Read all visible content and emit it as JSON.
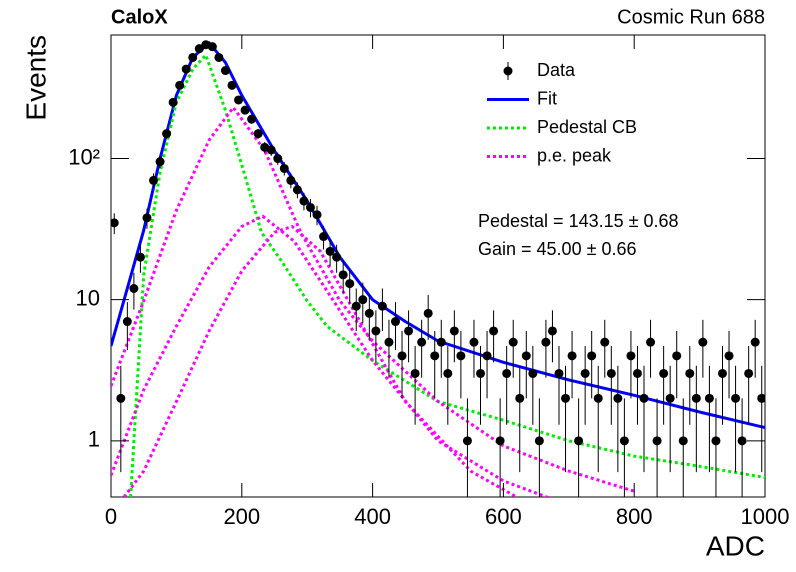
{
  "chart_data": {
    "type": "scatter",
    "title": "CaloX",
    "subtitle": "Cosmic Run 688",
    "xlabel": "ADC",
    "ylabel": "Events",
    "xlim": [
      0,
      1000
    ],
    "ylim": [
      0.4,
      750
    ],
    "log_y": true,
    "xticks": [
      0,
      200,
      400,
      600,
      800,
      1000
    ],
    "yticks": [
      1,
      10,
      {
        "value": 100,
        "label": "10²"
      }
    ],
    "legend": "upper right",
    "annotations": [
      "Pedestal = 143.15 ± 0.68",
      "Gain = 45.00 ± 0.66"
    ],
    "series": [
      {
        "name": "Data",
        "type": "errorbar",
        "color": "#000000",
        "x": [
          5,
          15,
          25,
          35,
          45,
          55,
          65,
          75,
          85,
          95,
          105,
          115,
          125,
          135,
          145,
          155,
          165,
          175,
          185,
          195,
          205,
          215,
          225,
          235,
          245,
          255,
          265,
          275,
          285,
          295,
          305,
          315,
          325,
          335,
          345,
          355,
          365,
          375,
          385,
          395,
          405,
          415,
          425,
          435,
          445,
          455,
          465,
          475,
          485,
          495,
          505,
          515,
          525,
          535,
          545,
          555,
          565,
          575,
          585,
          595,
          605,
          615,
          625,
          635,
          645,
          655,
          665,
          675,
          685,
          695,
          705,
          715,
          725,
          735,
          745,
          755,
          765,
          775,
          785,
          795,
          805,
          815,
          825,
          835,
          845,
          855,
          865,
          875,
          885,
          895,
          905,
          915,
          925,
          935,
          945,
          955,
          965,
          975,
          985,
          995
        ],
        "values": [
          35,
          2,
          7,
          12,
          20,
          38,
          70,
          95,
          150,
          250,
          330,
          430,
          520,
          600,
          640,
          620,
          520,
          420,
          330,
          260,
          220,
          190,
          150,
          120,
          115,
          100,
          85,
          70,
          60,
          50,
          45,
          40,
          28,
          22,
          20,
          15,
          13,
          9,
          10,
          8,
          6,
          9,
          5,
          7,
          4,
          6,
          3,
          5,
          8,
          4,
          5,
          3,
          6,
          4,
          1,
          5,
          3,
          4,
          6,
          1,
          3,
          5,
          2,
          4,
          3,
          1,
          5,
          6,
          3,
          2,
          4,
          1,
          3,
          4,
          2,
          5,
          3,
          2,
          1,
          4,
          3,
          2,
          5,
          1,
          3,
          2,
          4,
          1,
          3,
          2,
          5,
          2,
          1,
          3,
          4,
          2,
          1,
          3,
          5,
          2
        ],
        "errors": [
          5.9,
          1.4,
          2.6,
          3.5,
          4.5,
          6.2,
          8.4,
          9.7,
          12.2,
          15.8,
          18.2,
          20.7,
          22.8,
          24.5,
          25.3,
          24.9,
          22.8,
          20.5,
          18.2,
          16.1,
          14.8,
          13.8,
          12.2,
          11,
          10.7,
          10,
          9.2,
          8.4,
          7.7,
          7.1,
          6.7,
          6.3,
          5.3,
          4.7,
          4.5,
          3.9,
          3.6,
          3,
          3.2,
          2.8,
          2.4,
          3,
          2.2,
          2.6,
          2,
          2.4,
          1.7,
          2.2,
          2.8,
          2,
          2.2,
          1.7,
          2.4,
          2,
          1,
          2.2,
          1.7,
          2,
          2.4,
          1,
          1.7,
          2.2,
          1.4,
          2,
          1.7,
          1,
          2.2,
          2.4,
          1.7,
          1.4,
          2,
          1,
          1.7,
          2,
          1.4,
          2.2,
          1.7,
          1.4,
          1,
          2,
          1.7,
          1.4,
          2.2,
          1,
          1.7,
          1.4,
          2,
          1,
          1.7,
          1.4,
          2.2,
          1.4,
          1,
          1.7,
          2,
          1.4,
          1,
          1.7,
          2.2,
          1.4
        ]
      },
      {
        "name": "Fit",
        "type": "line",
        "color": "#0000ff",
        "curves": [
          {
            "x": [
              0,
              25,
              50,
              75,
              100,
              125,
              150,
              175,
              200,
              250,
              300,
              350,
              400,
              450,
              500,
              600,
              700,
              800,
              900,
              1000
            ],
            "values": [
              4.7,
              12,
              31,
              100,
              280,
              520,
              660,
              480,
              280,
              113,
              50,
              20,
              10,
              7,
              5.1,
              3.6,
              2.7,
              2.1,
              1.6,
              1.24
            ]
          }
        ]
      },
      {
        "name": "Pedestal CB",
        "type": "dotted-line",
        "color": "#00ee00",
        "curves": [
          {
            "x": [
              30,
              50,
              75,
              100,
              125,
              145,
              175,
              200,
              230,
              260,
              300,
              330,
              400,
              500,
              600,
              700,
              800,
              900,
              1000
            ],
            "values": [
              0.4,
              15,
              80,
              250,
              430,
              540,
              220,
              90,
              30,
              19,
              9.8,
              6.5,
              3.7,
              1.9,
              1.4,
              1.0,
              0.78,
              0.66,
              0.55
            ]
          }
        ]
      },
      {
        "name": "p.e. peak",
        "type": "dotted-line",
        "color": "#ff00ff",
        "curves": [
          {
            "x": [
              0,
              50,
              100,
              150,
              187,
              235,
              290,
              350,
              400,
              500,
              600,
              700,
              800
            ],
            "values": [
              2.45,
              9.8,
              43,
              135,
              230,
              114,
              30,
              9.8,
              5.1,
              1.9,
              0.92,
              0.61,
              0.44
            ]
          },
          {
            "x": [
              0,
              50,
              100,
              150,
              200,
              232,
              280,
              330,
              400,
              500,
              600,
              700
            ],
            "values": [
              0.57,
              2.3,
              6.5,
              17,
              33,
              39,
              26,
              11.6,
              3.7,
              1.0,
              0.52,
              0.35
            ]
          },
          {
            "x": [
              20,
              50,
              100,
              150,
              200,
              250,
              277,
              320,
              380,
              450,
              550,
              620
            ],
            "values": [
              0.4,
              0.61,
              1.9,
              6,
              16,
              30,
              33,
              22,
              7.1,
              1.9,
              0.61,
              0.4
            ]
          }
        ]
      }
    ]
  }
}
